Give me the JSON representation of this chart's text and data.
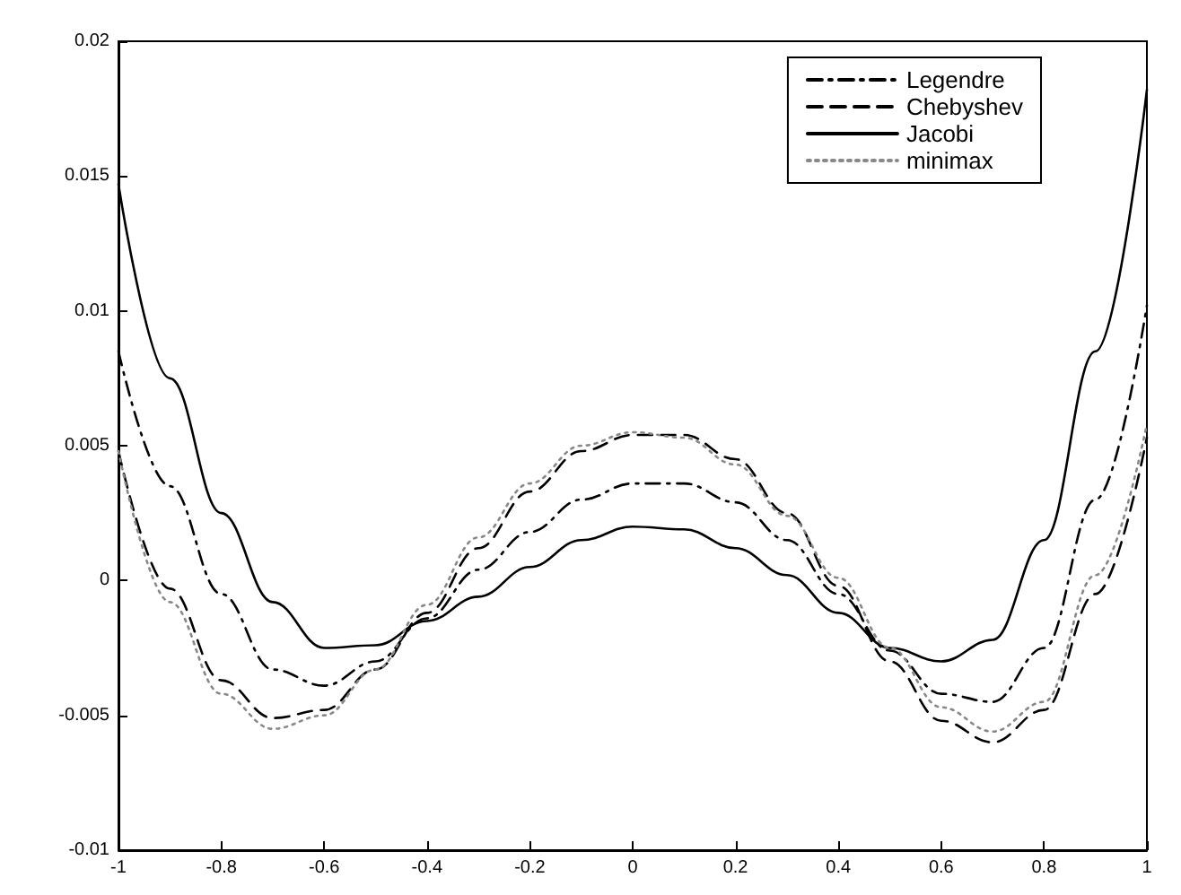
{
  "chart_data": {
    "type": "line",
    "x": [
      -1,
      -0.9,
      -0.8,
      -0.7,
      -0.6,
      -0.5,
      -0.4,
      -0.3,
      -0.2,
      -0.1,
      0,
      0.1,
      0.2,
      0.3,
      0.4,
      0.5,
      0.6,
      0.7,
      0.8,
      0.9,
      1
    ],
    "series": [
      {
        "name": "Legendre",
        "color": "#000000",
        "line_style": "dashdot",
        "values": [
          0.0085,
          0.0035,
          -0.0005,
          -0.0033,
          -0.0039,
          -0.003,
          -0.0014,
          0.0004,
          0.0018,
          0.003,
          0.0036,
          0.0036,
          0.0029,
          0.0015,
          -0.0005,
          -0.0026,
          -0.0042,
          -0.0045,
          -0.0025,
          0.003,
          0.0102
        ]
      },
      {
        "name": "Chebyshev",
        "color": "#000000",
        "line_style": "dashed",
        "values": [
          0.0048,
          -0.0003,
          -0.0037,
          -0.0051,
          -0.0048,
          -0.0033,
          -0.0012,
          0.0012,
          0.0033,
          0.0048,
          0.0054,
          0.0054,
          0.0045,
          0.0025,
          -0.0002,
          -0.003,
          -0.0052,
          -0.006,
          -0.0048,
          -0.0005,
          0.0053
        ]
      },
      {
        "name": "Jacobi",
        "color": "#000000",
        "line_style": "solid",
        "values": [
          0.0147,
          0.0075,
          0.0025,
          -0.0008,
          -0.0025,
          -0.0024,
          -0.0015,
          -0.0006,
          0.0005,
          0.0015,
          0.002,
          0.0019,
          0.0012,
          0.0002,
          -0.0012,
          -0.0025,
          -0.003,
          -0.0022,
          0.0015,
          0.0085,
          0.0182
        ]
      },
      {
        "name": "minimax",
        "color": "#888888",
        "line_style": "dotted",
        "values": [
          0.0048,
          -0.0008,
          -0.0042,
          -0.0055,
          -0.005,
          -0.0033,
          -0.0009,
          0.0016,
          0.0036,
          0.005,
          0.0055,
          0.0053,
          0.0043,
          0.0024,
          0.0001,
          -0.0025,
          -0.0047,
          -0.0056,
          -0.0045,
          0.0002,
          0.0058
        ]
      }
    ],
    "xlim": [
      -1,
      1
    ],
    "xticks": [
      -1,
      -0.8,
      -0.6,
      -0.4,
      -0.2,
      0,
      0.2,
      0.4,
      0.6,
      0.8,
      1
    ],
    "ylim": [
      -0.01,
      0.02
    ],
    "yticks": [
      -0.01,
      -0.005,
      0,
      0.005,
      0.01,
      0.015,
      0.02
    ],
    "grid": false,
    "legend": "top right",
    "marker": "none"
  }
}
